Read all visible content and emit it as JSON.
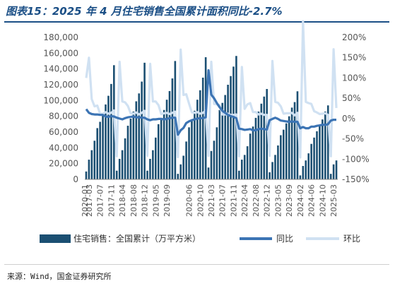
{
  "header": {
    "title": "图表15：2025 年 4 月住宅销售全国累计面积同比-2.7%"
  },
  "footer": {
    "source": "来源：Wind，国金证券研究所"
  },
  "chart_data": {
    "type": "bar+line",
    "title": "图表15：2025 年 4 月住宅销售全国累计面积同比-2.7%",
    "categories": [
      "2017-02",
      "2017-03",
      "2017-04",
      "2017-05",
      "2017-06",
      "2017-07",
      "2017-08",
      "2017-09",
      "2017-10",
      "2017-11",
      "2017-12",
      "2018-02",
      "2018-03",
      "2018-04",
      "2018-05",
      "2018-06",
      "2018-07",
      "2018-08",
      "2018-09",
      "2018-10",
      "2018-11",
      "2018-12",
      "2019-02",
      "2019-03",
      "2019-04",
      "2019-05",
      "2019-06",
      "2019-07",
      "2019-08",
      "2019-09",
      "2019-10",
      "2019-11",
      "2019-12",
      "2020-02",
      "2020-03",
      "2020-04",
      "2020-05",
      "2020-06",
      "2020-07",
      "2020-08",
      "2020-09",
      "2020-10",
      "2020-11",
      "2020-12",
      "2021-02",
      "2021-03",
      "2021-04",
      "2021-05",
      "2021-06",
      "2021-07",
      "2021-08",
      "2021-09",
      "2021-10",
      "2021-11",
      "2021-12",
      "2022-02",
      "2022-03",
      "2022-04",
      "2022-05",
      "2022-06",
      "2022-07",
      "2022-08",
      "2022-09",
      "2022-10",
      "2022-11",
      "2022-12",
      "2023-02",
      "2023-03",
      "2023-04",
      "2023-05",
      "2023-06",
      "2023-07",
      "2023-08",
      "2023-09",
      "2023-10",
      "2023-11",
      "2023-12",
      "2024-02",
      "2024-03",
      "2024-04",
      "2024-05",
      "2024-06",
      "2024-07",
      "2024-08",
      "2024-09",
      "2024-10",
      "2024-11",
      "2024-12",
      "2025-02",
      "2025-03",
      "2025-04"
    ],
    "x_tick_labels": [
      "2017-03",
      "2017-07",
      "2017-11",
      "2018-04",
      "2018-08",
      "2018-12",
      "2019-05",
      "2019-09",
      "2020-01",
      "2020-06",
      "2020-10",
      "2021-03",
      "2021-07",
      "2021-11",
      "2022-04",
      "2022-08",
      "2022-12",
      "2023-05",
      "2023-09",
      "2024-02",
      "2024-06",
      "2024-10",
      "2025-03"
    ],
    "series": [
      {
        "name": "住宅销售：全国累计（万平方米）",
        "type": "bar",
        "axis": "left",
        "color": "#1b4f72",
        "values": [
          10000,
          25000,
          37000,
          49000,
          65000,
          73000,
          82000,
          95000,
          106000,
          121000,
          144800,
          11000,
          26000,
          37000,
          52000,
          68000,
          77000,
          86000,
          99000,
          109000,
          124000,
          147900,
          11000,
          26000,
          37000,
          53000,
          70000,
          78000,
          88000,
          101000,
          112000,
          128000,
          150100,
          7000,
          19000,
          30000,
          48000,
          66000,
          76000,
          87000,
          101000,
          113000,
          129000,
          154900,
          15000,
          36000,
          49000,
          66000,
          88000,
          97000,
          107000,
          120000,
          131000,
          143000,
          156500,
          11000,
          25000,
          31000,
          42000,
          58000,
          67000,
          78000,
          86000,
          96000,
          105000,
          114600,
          9000,
          22000,
          31000,
          43000,
          56000,
          63000,
          71000,
          80000,
          91000,
          98000,
          111700,
          5000,
          17000,
          24000,
          33000,
          45000,
          53000,
          61000,
          68000,
          76000,
          86000,
          93800,
          7000,
          19000,
          24000
        ]
      },
      {
        "name": "同比",
        "type": "line",
        "axis": "right",
        "color": "#3c74b4",
        "values": [
          23,
          14,
          11,
          10,
          10,
          9,
          9,
          5,
          4,
          6,
          5,
          2,
          0,
          -2,
          1,
          3,
          4,
          5,
          3,
          3,
          2,
          2,
          -2,
          -4,
          -2,
          -2,
          -1,
          -1,
          -2,
          -1,
          1,
          2,
          2,
          -40,
          -29,
          -23,
          -11,
          -7,
          -4,
          -2,
          0,
          1,
          1,
          3,
          119,
          59,
          50,
          38,
          28,
          19,
          14,
          9,
          6,
          4,
          1,
          -25,
          -26,
          -28,
          -27,
          -26,
          -29,
          -29,
          -26,
          -25,
          -26,
          -27,
          -4,
          -1,
          2,
          -1,
          -5,
          -6,
          -7,
          -8,
          -7,
          -8,
          -8,
          -24,
          -21,
          -24,
          -24,
          -20,
          -20,
          -18,
          -17,
          -15,
          -16,
          -14,
          -5,
          -3,
          -3
        ]
      },
      {
        "name": "环比",
        "type": "line",
        "axis": "right",
        "color": "#d0e1f2",
        "values": [
          100,
          150,
          48,
          30,
          32,
          12,
          12,
          16,
          12,
          14,
          20,
          -93,
          140,
          42,
          40,
          31,
          13,
          12,
          15,
          10,
          14,
          19,
          -92,
          135,
          42,
          42,
          33,
          11,
          13,
          14,
          11,
          14,
          17,
          -95,
          170,
          58,
          60,
          37,
          15,
          14,
          16,
          12,
          14,
          20,
          -92,
          140,
          36,
          35,
          33,
          10,
          10,
          12,
          9,
          9,
          10,
          -93,
          127,
          24,
          35,
          38,
          16,
          16,
          10,
          12,
          9,
          9,
          -92,
          142,
          41,
          39,
          30,
          12,
          13,
          13,
          14,
          8,
          14,
          -96,
          240,
          41,
          38,
          36,
          18,
          15,
          11,
          12,
          13,
          9,
          -93,
          171,
          26
        ]
      }
    ],
    "y_left": {
      "min": 0,
      "max": 180000,
      "ticks": [
        "0",
        "20,000",
        "40,000",
        "60,000",
        "80,000",
        "100,000",
        "120,000",
        "140,000",
        "160,000",
        "180,000"
      ]
    },
    "y_right": {
      "min": -150,
      "max": 200,
      "ticks": [
        "-150%",
        "-100%",
        "-50%",
        "0%",
        "50%",
        "100%",
        "150%",
        "200%"
      ]
    },
    "legend": {
      "position": "bottom",
      "labels": [
        "住宅销售：全国累计（万平方米）",
        "同比",
        "环比"
      ]
    },
    "grid": false
  }
}
